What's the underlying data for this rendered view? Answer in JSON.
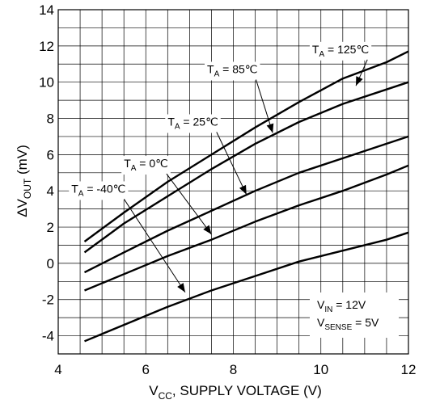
{
  "chart_data": {
    "type": "line",
    "title": "",
    "xlabel": {
      "prefix": "V",
      "sub": "CC",
      "rest": ", SUPPLY VOLTAGE (V)"
    },
    "ylabel": {
      "prefix": "ΔV",
      "sub": "OUT",
      "rest": " (mV)"
    },
    "xlim": [
      4,
      12
    ],
    "ylim": [
      -5,
      14
    ],
    "x_ticks": [
      4,
      6,
      8,
      10,
      12
    ],
    "y_ticks": [
      -4,
      -2,
      0,
      2,
      4,
      6,
      8,
      10,
      12,
      14
    ],
    "x_tick_labels": [
      "4",
      "6",
      "8",
      "10",
      "12"
    ],
    "y_tick_labels": [
      "-4",
      "-2",
      "0",
      "2",
      "4",
      "6",
      "8",
      "10",
      "12",
      "14"
    ],
    "grid": true,
    "grid_minor_x": [
      4.5,
      5,
      5.5,
      6,
      6.5,
      7,
      7.5,
      8,
      8.5,
      9,
      9.5,
      10,
      10.5,
      11,
      11.5,
      12
    ],
    "grid_minor_y": [
      -5,
      -4,
      -3,
      -2,
      -1,
      0,
      1,
      2,
      3,
      4,
      5,
      6,
      7,
      8,
      9,
      10,
      11,
      12,
      13,
      14
    ],
    "series": [
      {
        "name": "T_A = 125°C",
        "label_main": "T",
        "label_sub": "A",
        "label_rest": " = 125℃",
        "x": [
          4.6,
          5.5,
          6.5,
          7.5,
          8.5,
          9.5,
          10.5,
          11.5,
          12.0
        ],
        "y": [
          1.2,
          2.8,
          4.5,
          6.0,
          7.5,
          8.9,
          10.2,
          11.1,
          11.7
        ]
      },
      {
        "name": "T_A = 85°C",
        "label_main": "T",
        "label_sub": "A",
        "label_rest": " = 85℃",
        "x": [
          4.6,
          5.5,
          6.5,
          7.5,
          8.5,
          9.5,
          10.5,
          11.5,
          12.0
        ],
        "y": [
          0.6,
          2.2,
          3.7,
          5.2,
          6.6,
          7.8,
          8.8,
          9.6,
          10.0
        ]
      },
      {
        "name": "T_A = 25°C",
        "label_main": "T",
        "label_sub": "A",
        "label_rest": " = 25℃",
        "x": [
          4.6,
          5.5,
          6.5,
          7.5,
          8.5,
          9.5,
          10.5,
          11.5,
          12.0
        ],
        "y": [
          -0.5,
          0.6,
          1.8,
          2.9,
          4.0,
          5.0,
          5.8,
          6.6,
          7.0
        ]
      },
      {
        "name": "T_A = 0°C",
        "label_main": "T",
        "label_sub": "A",
        "label_rest": " = 0℃",
        "x": [
          4.6,
          5.5,
          6.5,
          7.5,
          8.5,
          9.5,
          10.5,
          11.5,
          12.0
        ],
        "y": [
          -1.5,
          -0.6,
          0.4,
          1.3,
          2.3,
          3.2,
          4.0,
          4.9,
          5.4
        ]
      },
      {
        "name": "T_A = -40°C",
        "label_main": "T",
        "label_sub": "A",
        "label_rest": " = -40℃",
        "x": [
          4.6,
          5.5,
          6.5,
          7.5,
          8.5,
          9.5,
          10.5,
          11.5,
          12.0
        ],
        "y": [
          -4.3,
          -3.4,
          -2.4,
          -1.5,
          -0.7,
          0.1,
          0.7,
          1.3,
          1.7
        ]
      }
    ],
    "annotations": [
      {
        "series": 0,
        "label_at": [
          9.8,
          11.6
        ],
        "arrow_to": [
          10.8,
          9.8
        ]
      },
      {
        "series": 1,
        "label_at": [
          7.4,
          10.5
        ],
        "arrow_to": [
          8.9,
          7.2
        ]
      },
      {
        "series": 2,
        "label_at": [
          6.5,
          7.6
        ],
        "arrow_to": [
          8.3,
          3.8
        ]
      },
      {
        "series": 3,
        "label_at": [
          5.5,
          5.3
        ],
        "arrow_to": [
          7.5,
          1.6
        ]
      },
      {
        "series": 4,
        "label_at": [
          4.3,
          3.9
        ],
        "arrow_to": [
          6.9,
          -1.6
        ]
      }
    ],
    "conditions": [
      {
        "main": "V",
        "sub": "IN",
        "rest": " = 12V"
      },
      {
        "main": "V",
        "sub": "SENSE",
        "rest": " = 5V"
      }
    ]
  }
}
